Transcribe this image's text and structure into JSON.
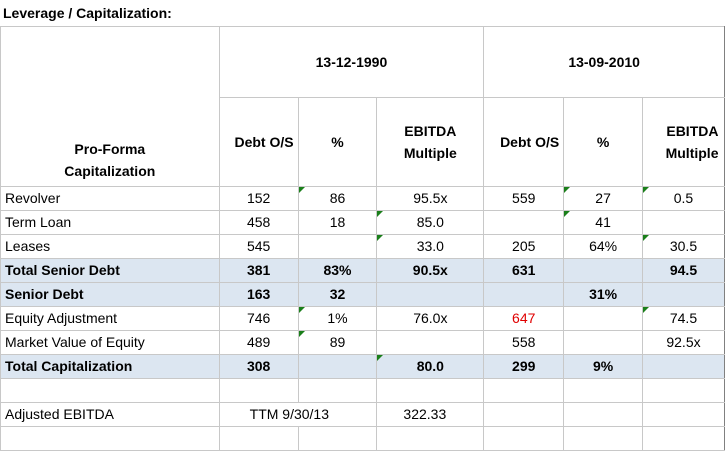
{
  "title": "Leverage / Capitalization:",
  "header": {
    "section_label": "Pro-Forma Capitalization",
    "date_left": "13-12-1990",
    "date_right": "13-09-2010",
    "col_debt": "Debt O/S",
    "col_pct": "%",
    "col_ebitda": "EBITDA Multiple"
  },
  "rows": [
    {
      "label": "Revolver",
      "d1": "152",
      "p1": "86",
      "e1": "95.5x",
      "d2": "559",
      "p2": "27",
      "e2": "0.5"
    },
    {
      "label": "Term Loan",
      "d1": "458",
      "p1": "18",
      "e1": "85.0",
      "d2": "",
      "p2": "41",
      "e2": ""
    },
    {
      "label": "Leases",
      "d1": "545",
      "p1": "",
      "e1": "33.0",
      "d2": "205",
      "p2": "64%",
      "e2": "30.5"
    },
    {
      "label": "Total Senior Debt",
      "d1": "381",
      "p1": "83%",
      "e1": "90.5x",
      "d2": "631",
      "p2": "",
      "e2": "94.5"
    },
    {
      "label": "Senior Debt",
      "d1": "163",
      "p1": "32",
      "e1": "",
      "d2": "",
      "p2": "31%",
      "e2": ""
    },
    {
      "label": "Equity Adjustment",
      "d1": "746",
      "p1": "1%",
      "e1": "76.0x",
      "d2": "647",
      "p2": "",
      "e2": "74.5"
    },
    {
      "label": "Market Value of Equity",
      "d1": "489",
      "p1": "89",
      "e1": "",
      "d2": "558",
      "p2": "",
      "e2": "92.5x"
    },
    {
      "label": "Total Capitalization",
      "d1": "308",
      "p1": "",
      "e1": "80.0",
      "d2": "299",
      "p2": "9%",
      "e2": ""
    }
  ],
  "footer": {
    "label": "Adjusted EBITDA",
    "period": "TTM 9/30/13",
    "value": "322.33"
  },
  "colors": {
    "shade": "#dce6f1",
    "grid": "#c8c8c8",
    "negative": "#e00000",
    "indicator": "#1a7f1a"
  }
}
